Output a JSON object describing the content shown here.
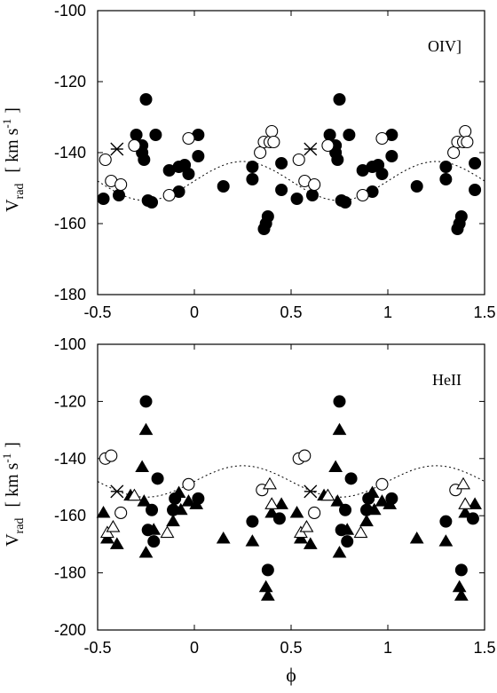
{
  "chart_data": [
    {
      "type": "scatter",
      "annotation": "OIV]",
      "xlabel": "",
      "ylabel": {
        "main": "V",
        "sub": "rad",
        "unit_open": "[ km s",
        "unit_sup": "-1",
        "unit_close": "]"
      },
      "xlim": [
        -0.5,
        1.5
      ],
      "ylim": [
        -180,
        -100
      ],
      "xticks": [
        "-0.5",
        "0",
        "0.5",
        "1",
        "1.5"
      ],
      "yticks": [
        "-100",
        "-120",
        "-140",
        "-160",
        "-180"
      ],
      "model_curve": {
        "style": "dotted",
        "mean": -148,
        "amplitude": 5.5,
        "max_phase": 0.25
      },
      "series": [
        {
          "marker": "filled-circle",
          "points": [
            [
              -0.47,
              -153
            ],
            [
              -0.39,
              -152
            ],
            [
              -0.3,
              -135
            ],
            [
              -0.27,
              -138
            ],
            [
              -0.27,
              -140
            ],
            [
              -0.26,
              -142
            ],
            [
              -0.25,
              -125
            ],
            [
              -0.24,
              -153.5
            ],
            [
              -0.22,
              -154
            ],
            [
              -0.2,
              -135
            ],
            [
              -0.13,
              -145
            ],
            [
              -0.08,
              -151
            ],
            [
              -0.08,
              -144
            ],
            [
              -0.05,
              -143.5
            ],
            [
              -0.03,
              -146
            ],
            [
              0.02,
              -141
            ],
            [
              0.02,
              -135
            ],
            [
              0.15,
              -149.5
            ],
            [
              0.3,
              -147.5
            ],
            [
              0.3,
              -144
            ],
            [
              0.36,
              -161.5
            ],
            [
              0.37,
              -160
            ],
            [
              0.38,
              -158
            ],
            [
              0.45,
              -150.5
            ],
            [
              0.45,
              -143
            ],
            [
              0.53,
              -153
            ],
            [
              0.61,
              -152
            ],
            [
              0.7,
              -135
            ],
            [
              0.73,
              -138
            ],
            [
              0.73,
              -140
            ],
            [
              0.74,
              -142
            ],
            [
              0.75,
              -125
            ],
            [
              0.76,
              -153.5
            ],
            [
              0.78,
              -154
            ],
            [
              0.8,
              -135
            ],
            [
              0.87,
              -145
            ],
            [
              0.92,
              -151
            ],
            [
              0.92,
              -144
            ],
            [
              0.95,
              -143.5
            ],
            [
              0.97,
              -146
            ],
            [
              1.02,
              -141
            ],
            [
              1.02,
              -135
            ],
            [
              1.15,
              -149.5
            ],
            [
              1.3,
              -147.5
            ],
            [
              1.3,
              -144
            ],
            [
              1.36,
              -161.5
            ],
            [
              1.37,
              -160
            ],
            [
              1.38,
              -158
            ],
            [
              1.45,
              -150.5
            ],
            [
              1.45,
              -143
            ]
          ]
        },
        {
          "marker": "open-circle",
          "points": [
            [
              -0.46,
              -142
            ],
            [
              -0.43,
              -148
            ],
            [
              -0.38,
              -149
            ],
            [
              -0.31,
              -138
            ],
            [
              -0.13,
              -152
            ],
            [
              -0.03,
              -136
            ],
            [
              0.34,
              -140
            ],
            [
              0.36,
              -137
            ],
            [
              0.39,
              -137
            ],
            [
              0.4,
              -134
            ],
            [
              0.41,
              -137
            ],
            [
              0.54,
              -142
            ],
            [
              0.57,
              -148
            ],
            [
              0.62,
              -149
            ],
            [
              0.69,
              -138
            ],
            [
              0.87,
              -152
            ],
            [
              0.97,
              -136
            ],
            [
              1.34,
              -140
            ],
            [
              1.36,
              -137
            ],
            [
              1.39,
              -137
            ],
            [
              1.4,
              -134
            ],
            [
              1.41,
              -137
            ]
          ]
        },
        {
          "marker": "cross",
          "points": [
            [
              -0.4,
              -139
            ],
            [
              0.6,
              -139
            ]
          ]
        }
      ]
    },
    {
      "type": "scatter",
      "annotation": "HeII",
      "xlabel": "ϕ",
      "ylabel": {
        "main": "V",
        "sub": "rad",
        "unit_open": "[ km s",
        "unit_sup": "-1",
        "unit_close": "]"
      },
      "xlim": [
        -0.5,
        1.5
      ],
      "ylim": [
        -200,
        -100
      ],
      "xticks": [
        "-0.5",
        "0",
        "0.5",
        "1",
        "1.5"
      ],
      "yticks": [
        "-100",
        "-120",
        "-140",
        "-160",
        "-180",
        "-200"
      ],
      "model_curve": {
        "style": "dotted",
        "mean": -148,
        "amplitude": 5.5,
        "max_phase": 0.25
      },
      "series": [
        {
          "marker": "filled-circle",
          "points": [
            [
              -0.25,
              -120
            ],
            [
              -0.22,
              -158
            ],
            [
              -0.24,
              -165
            ],
            [
              -0.21,
              -169
            ],
            [
              -0.19,
              -147
            ],
            [
              -0.11,
              -158
            ],
            [
              -0.1,
              -154
            ],
            [
              0.02,
              -154
            ],
            [
              0.3,
              -162
            ],
            [
              0.38,
              -179
            ],
            [
              0.44,
              -161
            ],
            [
              0.75,
              -120
            ],
            [
              0.78,
              -158
            ],
            [
              0.76,
              -165
            ],
            [
              0.79,
              -169
            ],
            [
              0.81,
              -147
            ],
            [
              0.89,
              -158
            ],
            [
              0.9,
              -154
            ],
            [
              1.02,
              -154
            ],
            [
              1.3,
              -162
            ],
            [
              1.38,
              -179
            ],
            [
              1.44,
              -161
            ]
          ]
        },
        {
          "marker": "filled-triangle",
          "points": [
            [
              -0.47,
              -159
            ],
            [
              -0.45,
              -168
            ],
            [
              -0.4,
              -170
            ],
            [
              -0.33,
              -153
            ],
            [
              -0.27,
              -143
            ],
            [
              -0.26,
              -155
            ],
            [
              -0.25,
              -130
            ],
            [
              -0.25,
              -173
            ],
            [
              -0.21,
              -165
            ],
            [
              -0.11,
              -162
            ],
            [
              -0.08,
              -152
            ],
            [
              -0.07,
              -158
            ],
            [
              -0.03,
              -155
            ],
            [
              0.01,
              -156
            ],
            [
              0.15,
              -168
            ],
            [
              0.3,
              -169
            ],
            [
              0.37,
              -185
            ],
            [
              0.38,
              -188
            ],
            [
              0.4,
              -159
            ],
            [
              0.45,
              -156
            ],
            [
              0.53,
              -159
            ],
            [
              0.55,
              -168
            ],
            [
              0.6,
              -170
            ],
            [
              0.67,
              -153
            ],
            [
              0.73,
              -143
            ],
            [
              0.74,
              -155
            ],
            [
              0.75,
              -130
            ],
            [
              0.75,
              -173
            ],
            [
              0.79,
              -165
            ],
            [
              0.89,
              -162
            ],
            [
              0.92,
              -152
            ],
            [
              0.93,
              -158
            ],
            [
              0.97,
              -155
            ],
            [
              1.01,
              -156
            ],
            [
              1.15,
              -168
            ],
            [
              1.3,
              -169
            ],
            [
              1.37,
              -185
            ],
            [
              1.38,
              -188
            ],
            [
              1.4,
              -159
            ],
            [
              1.45,
              -156
            ]
          ]
        },
        {
          "marker": "open-circle",
          "points": [
            [
              -0.46,
              -140
            ],
            [
              -0.43,
              -139
            ],
            [
              -0.38,
              -159
            ],
            [
              -0.03,
              -149
            ],
            [
              0.35,
              -151
            ],
            [
              0.54,
              -140
            ],
            [
              0.57,
              -139
            ],
            [
              0.62,
              -159
            ],
            [
              0.97,
              -149
            ],
            [
              1.35,
              -151
            ]
          ]
        },
        {
          "marker": "open-triangle",
          "points": [
            [
              -0.45,
              -166
            ],
            [
              -0.42,
              -164
            ],
            [
              -0.31,
              -153
            ],
            [
              -0.14,
              -166
            ],
            [
              0.39,
              -149
            ],
            [
              0.4,
              -156
            ],
            [
              0.55,
              -166
            ],
            [
              0.58,
              -164
            ],
            [
              0.69,
              -153
            ],
            [
              0.86,
              -166
            ],
            [
              1.39,
              -149
            ],
            [
              1.4,
              -156
            ]
          ]
        },
        {
          "marker": "cross",
          "points": [
            [
              -0.4,
              -151.5
            ],
            [
              0.6,
              -151.5
            ]
          ]
        }
      ]
    }
  ]
}
